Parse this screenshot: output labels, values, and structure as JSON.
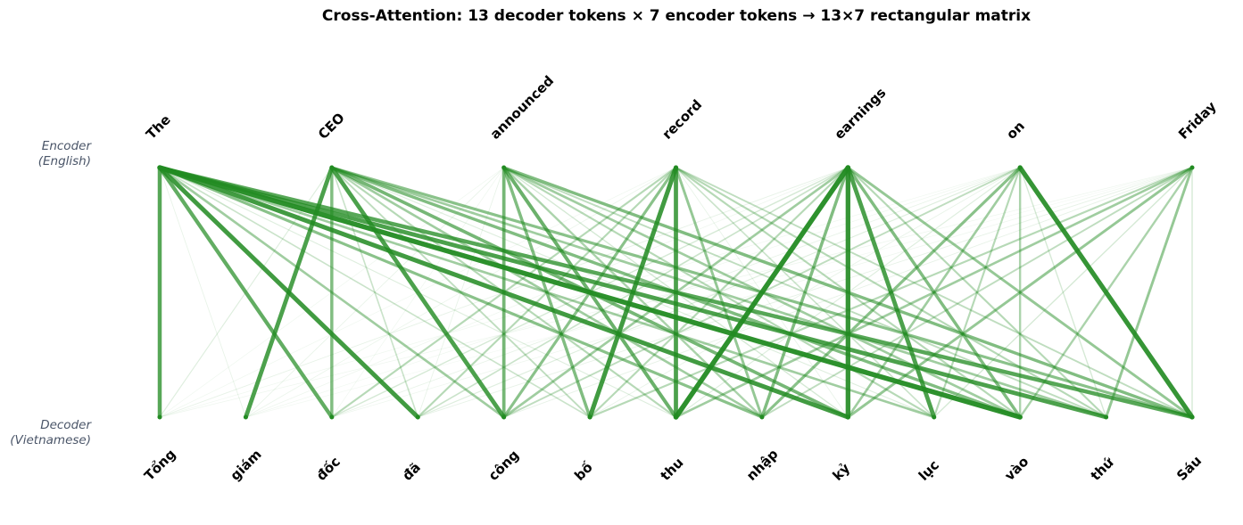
{
  "figure": {
    "title": "Cross-Attention: 13 decoder tokens × 7 encoder tokens  →  13×7 rectangular matrix",
    "encoder_label_line1": "Encoder",
    "encoder_label_line2": "(English)",
    "decoder_label_line1": "Decoder",
    "decoder_label_line2": "(Vietnamese)",
    "line_color": "#228b22"
  },
  "encoder_tokens": [
    "The",
    "CEO",
    "announced",
    "record",
    "earnings",
    "on",
    "Friday"
  ],
  "decoder_tokens": [
    "Tổng",
    "giám",
    "đốc",
    "đã",
    "công",
    "bố",
    "thu",
    "nhập",
    "kỷ",
    "lục",
    "vào",
    "thứ",
    "Sáu"
  ],
  "attention_weights": [
    [
      0.75,
      0.1,
      0.02,
      0.02,
      0.06,
      0.02,
      0.03
    ],
    [
      0.05,
      0.8,
      0.05,
      0.04,
      0.03,
      0.02,
      0.01
    ],
    [
      0.7,
      0.55,
      0.02,
      0.3,
      0.15,
      0.05,
      0.03
    ],
    [
      0.85,
      0.2,
      0.05,
      0.3,
      0.2,
      0.1,
      0.06
    ],
    [
      0.4,
      0.8,
      0.6,
      0.5,
      0.4,
      0.25,
      0.06
    ],
    [
      0.2,
      0.25,
      0.55,
      0.85,
      0.3,
      0.05,
      0.3
    ],
    [
      0.1,
      0.3,
      0.65,
      0.8,
      0.95,
      0.1,
      0.4
    ],
    [
      0.5,
      0.4,
      0.35,
      0.45,
      0.55,
      0.5,
      0.25
    ],
    [
      0.85,
      0.6,
      0.15,
      0.05,
      0.9,
      0.4,
      0.45
    ],
    [
      0.4,
      0.1,
      0.3,
      0.2,
      0.8,
      0.3,
      0.15
    ],
    [
      0.95,
      0.55,
      0.4,
      0.3,
      0.55,
      0.35,
      0.35
    ],
    [
      0.8,
      0.4,
      0.25,
      0.3,
      0.3,
      0.15,
      0.45
    ],
    [
      0.75,
      0.5,
      0.55,
      0.25,
      0.45,
      0.9,
      0.15
    ]
  ]
}
